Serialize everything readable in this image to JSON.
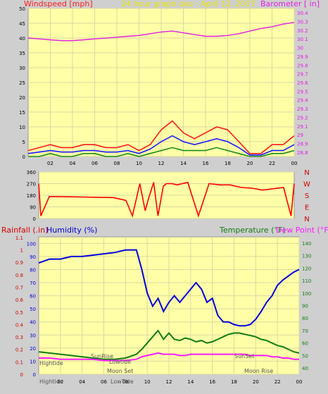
{
  "top_panel": {
    "left_title": "Windspeed [mph]",
    "center_title": "24 hour graph due : April 12, 2017",
    "right_title": "Barometer [ in]"
  },
  "bottom_panel": {
    "left_title_rain": "Rainfall (.in)",
    "left_title_humidity": "Humidity (%)",
    "right_title_temp": "Temperature (°F)",
    "right_title_dew": "Dew Point (°F)",
    "events": {
      "hightide1": "Hightide",
      "sunrise": "SunRise",
      "lowtide1": "Lowtide",
      "moonset": "Moon Set",
      "hightide2": "Hightide",
      "lowtide2": "LowTide",
      "sunset": "SunSet",
      "moonrise": "Moon Rise"
    }
  },
  "colors": {
    "background": "#cfcfcf",
    "plot": "#ffffa8",
    "grid": "#d9d9a0",
    "wind_gust": "#ff1a1a",
    "wind_avg": "#1a1aff",
    "wind_min": "#1a8c1a",
    "barometer": "#e020e0",
    "direction": "#ff0000",
    "humidity": "#0000e0",
    "temperature": "#137c13",
    "dewpoint": "#ff1aff",
    "axis_left_text": "#000000",
    "axis_right_text": "#e020e0",
    "temp_axis_text": "#137c13",
    "rain_axis_text": "#d00000",
    "hum_axis_text": "#0000d0"
  },
  "chart_data": [
    {
      "type": "line",
      "name": "windspeed-barometer",
      "x_ticks": [
        "02",
        "04",
        "06",
        "08",
        "10",
        "12",
        "14",
        "16",
        "18",
        "20",
        "22",
        "00"
      ],
      "y_ticks_left": [
        "0",
        "5",
        "10",
        "15",
        "20",
        "25",
        "30",
        "35",
        "40",
        "45",
        "50"
      ],
      "y_ticks_right": [
        "28.8",
        "28.9",
        "29",
        "29.1",
        "29.2",
        "29.3",
        "29.4",
        "29.5",
        "29.6",
        "29.7",
        "29.8",
        "29.9",
        "30",
        "30.1",
        "30.2",
        "30.3",
        "30.4"
      ],
      "ylim_left": [
        0,
        50
      ],
      "ylim_right": [
        28.75,
        30.45
      ],
      "xlim": [
        0,
        24
      ],
      "barometer": {
        "x": [
          0,
          1,
          2,
          3,
          4,
          5,
          6,
          7,
          8,
          9,
          10,
          11,
          12,
          13,
          14,
          15,
          16,
          17,
          18,
          19,
          20,
          21,
          22,
          23,
          24
        ],
        "y": [
          30.11,
          30.1,
          30.09,
          30.08,
          30.08,
          30.09,
          30.1,
          30.11,
          30.12,
          30.13,
          30.14,
          30.16,
          30.18,
          30.19,
          30.17,
          30.15,
          30.13,
          30.13,
          30.14,
          30.16,
          30.19,
          30.22,
          30.24,
          30.27,
          30.29
        ]
      },
      "wind_gust": {
        "x": [
          0,
          1,
          2,
          3,
          4,
          5,
          6,
          7,
          8,
          9,
          10,
          11,
          12,
          13,
          14,
          15,
          16,
          17,
          18,
          19,
          20,
          21,
          22,
          23,
          24
        ],
        "y": [
          2,
          3,
          4,
          3,
          3,
          4,
          4,
          3,
          3,
          4,
          2,
          4,
          9,
          12,
          8,
          6,
          8,
          10,
          9,
          5,
          1,
          1,
          4,
          4,
          7
        ]
      },
      "wind_avg": {
        "x": [
          0,
          1,
          2,
          3,
          4,
          5,
          6,
          7,
          8,
          9,
          10,
          11,
          12,
          13,
          14,
          15,
          16,
          17,
          18,
          19,
          20,
          21,
          22,
          23,
          24
        ],
        "y": [
          1,
          1.5,
          2,
          1.5,
          1.5,
          2,
          2,
          1.5,
          1.5,
          2,
          1,
          2.5,
          5,
          7,
          5,
          4,
          5,
          6,
          5,
          3,
          0.5,
          0.5,
          2,
          2,
          4
        ]
      },
      "wind_min": {
        "x": [
          0,
          1,
          2,
          3,
          4,
          5,
          6,
          7,
          8,
          9,
          10,
          11,
          12,
          13,
          14,
          15,
          16,
          17,
          18,
          19,
          20,
          21,
          22,
          23,
          24
        ],
        "y": [
          0,
          0,
          1,
          0,
          0,
          1,
          1,
          0,
          0,
          1,
          0,
          1,
          2,
          3,
          2,
          2,
          2,
          3,
          2,
          1,
          0,
          0,
          1,
          1,
          2
        ]
      }
    },
    {
      "type": "line",
      "name": "wind-direction",
      "y_ticks_left": [
        "0",
        "90",
        "180",
        "270",
        "360"
      ],
      "y_ticks_right": [
        "N",
        "E",
        "S",
        "W",
        "N"
      ],
      "ylim": [
        0,
        360
      ],
      "x": [
        0,
        0.2,
        1,
        3,
        5,
        7,
        8.2,
        8.8,
        9.5,
        10,
        10.3,
        10.8,
        11.2,
        11.7,
        12,
        12.5,
        13,
        14,
        15,
        16,
        17,
        18,
        19,
        20,
        21,
        22,
        23,
        23.7,
        24
      ],
      "y": [
        270,
        20,
        170,
        168,
        165,
        162,
        140,
        20,
        270,
        60,
        150,
        280,
        20,
        250,
        270,
        270,
        260,
        280,
        20,
        270,
        260,
        260,
        240,
        235,
        220,
        230,
        240,
        20,
        270
      ]
    },
    {
      "type": "line",
      "name": "rain-humidity-temperature",
      "y_ticks_rain": [
        "0",
        "0.1",
        "0.2",
        "0.3",
        "0.4",
        "0.5",
        "0.6",
        "0.7",
        "0.8",
        "0.9",
        "1",
        "1.1"
      ],
      "y_ticks_humidity": [
        "0",
        "10",
        "20",
        "30",
        "40",
        "50",
        "60",
        "70",
        "80",
        "90",
        "100"
      ],
      "y_ticks_temp": [
        "40",
        "50",
        "60",
        "70",
        "80",
        "90",
        "100",
        "110",
        "120",
        "130",
        "140"
      ],
      "ylim_humidity": [
        0,
        105
      ],
      "ylim_temp": [
        35,
        145
      ],
      "x_ticks": [
        "02",
        "04",
        "06",
        "08",
        "10",
        "12",
        "14",
        "16",
        "18",
        "20",
        "22",
        "00"
      ],
      "humidity": {
        "x": [
          0,
          1,
          2,
          3,
          4,
          5,
          6,
          7,
          8,
          9,
          9.5,
          10,
          10.5,
          11,
          11.5,
          12,
          12.5,
          13,
          13.5,
          14,
          14.5,
          15,
          15.5,
          16,
          16.5,
          17,
          17.5,
          18,
          18.5,
          19,
          19.5,
          20,
          20.5,
          21,
          21.5,
          22,
          22.5,
          23,
          23.5,
          24
        ],
        "y": [
          85,
          88,
          88,
          90,
          90,
          91,
          92,
          93,
          95,
          95,
          80,
          62,
          52,
          58,
          48,
          55,
          60,
          55,
          60,
          65,
          70,
          65,
          55,
          58,
          45,
          40,
          40,
          38,
          37,
          37,
          38,
          42,
          48,
          55,
          60,
          68,
          72,
          75,
          78,
          80
        ]
      },
      "temperature": {
        "x": [
          0,
          1,
          2,
          3,
          4,
          5,
          6,
          7,
          8,
          9,
          9.5,
          10,
          10.5,
          11,
          11.5,
          12,
          12.5,
          13,
          13.5,
          14,
          14.5,
          15,
          15.5,
          16,
          16.5,
          17,
          17.5,
          18,
          18.5,
          19,
          19.5,
          20,
          20.5,
          21,
          21.5,
          22,
          22.5,
          23,
          23.5,
          24
        ],
        "y": [
          53,
          52,
          51,
          50,
          49,
          48,
          47,
          47,
          48,
          51,
          55,
          60,
          65,
          70,
          63,
          68,
          63,
          62,
          64,
          63,
          61,
          62,
          60,
          61,
          63,
          65,
          67,
          68,
          68,
          67,
          66,
          65,
          63,
          62,
          60,
          58,
          57,
          55,
          53,
          52
        ]
      },
      "dewpoint": {
        "x": [
          0,
          1,
          2,
          3,
          4,
          5,
          6,
          7,
          8,
          9,
          9.5,
          10,
          10.5,
          11,
          11.5,
          12,
          12.5,
          13,
          13.5,
          14,
          14.5,
          15,
          15.5,
          16,
          16.5,
          17,
          17.5,
          18,
          18.5,
          19,
          19.5,
          20,
          20.5,
          21,
          21.5,
          22,
          22.5,
          23,
          23.5,
          24
        ],
        "y": [
          48,
          48,
          47,
          47,
          47,
          47,
          46,
          46,
          46,
          47,
          49,
          50,
          51,
          52,
          51,
          51,
          51,
          50,
          50,
          51,
          51,
          51,
          51,
          51,
          51,
          51,
          51,
          51,
          51,
          51,
          50,
          50,
          50,
          50,
          49,
          49,
          48,
          48,
          47,
          47
        ]
      }
    }
  ]
}
